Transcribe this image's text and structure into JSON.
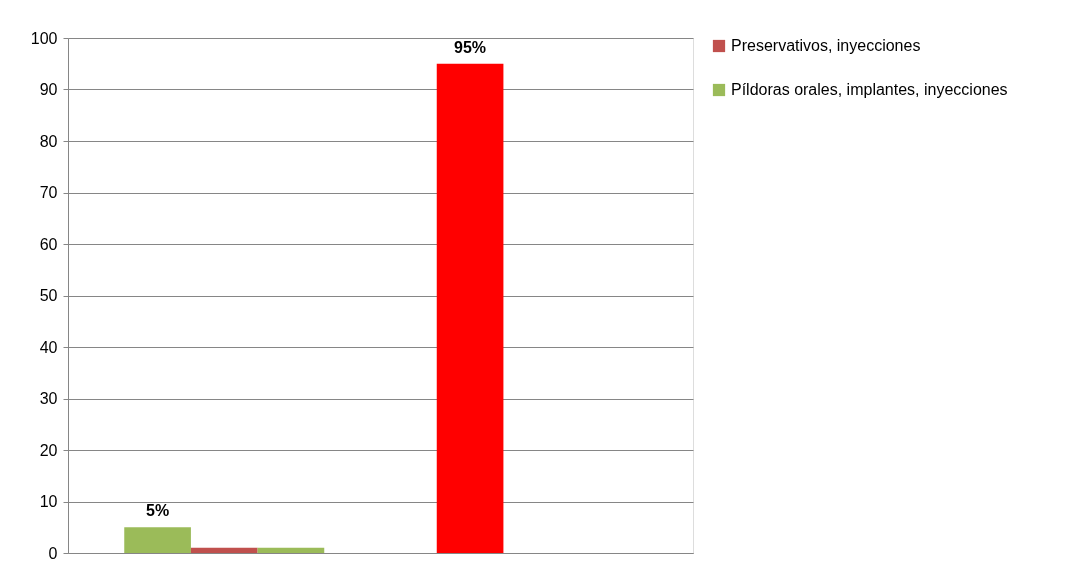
{
  "chart_data": {
    "type": "bar",
    "categories": [
      null,
      null
    ],
    "series": [
      {
        "colors": [
          "#9bbb59",
          "#ff0000"
        ],
        "values": [
          5,
          95
        ],
        "value_labels": [
          "5%",
          "95%"
        ]
      },
      {
        "name": "Preservativos, inyecciones",
        "color": "#c0504d",
        "values": [
          1,
          null
        ]
      },
      {
        "name": "Píldoras orales, implantes, inyecciones",
        "color": "#9bbb59",
        "values": [
          1,
          null
        ]
      }
    ],
    "ylim": [
      0,
      100
    ],
    "yticks": [
      0,
      10,
      20,
      30,
      40,
      50,
      60,
      70,
      80,
      90,
      100
    ],
    "grid": "y",
    "legend": "right"
  }
}
